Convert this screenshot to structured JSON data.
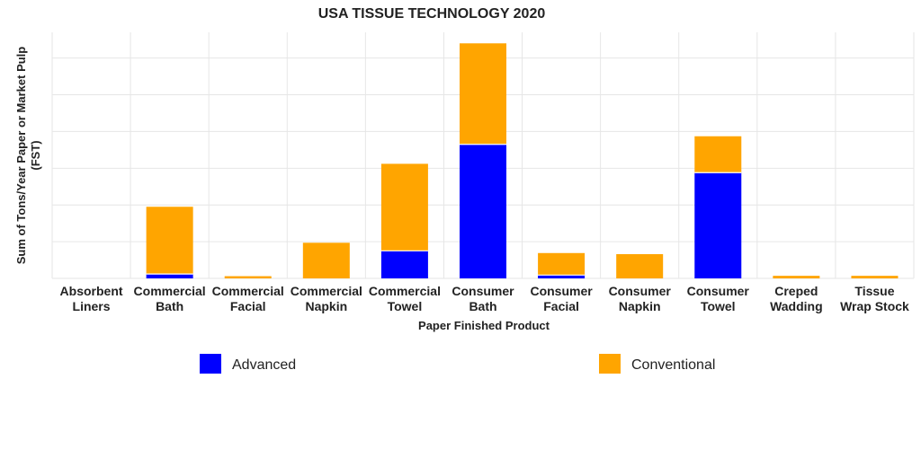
{
  "chart_data": {
    "type": "bar",
    "stacked": true,
    "title": "USA TISSUE TECHNOLOGY 2020",
    "xlabel": "Paper Finished Product",
    "ylabel": "Sum of Tons/Year Paper or Market Pulp (FST)",
    "ylabel_lines": [
      "Sum of Tons/Year Paper or Market Pulp",
      "(FST)"
    ],
    "ylim": [
      0,
      6.7
    ],
    "grid": true,
    "legend_position": "bottom",
    "categories": [
      [
        "Absorbent",
        "Liners"
      ],
      [
        "Commercial",
        "Bath"
      ],
      [
        "Commercial",
        "Facial"
      ],
      [
        "Commercial",
        "Napkin"
      ],
      [
        "Commercial",
        "Towel"
      ],
      [
        "Consumer",
        "Bath"
      ],
      [
        "Consumer",
        "Facial"
      ],
      [
        "Consumer",
        "Napkin"
      ],
      [
        "Consumer",
        "Towel"
      ],
      [
        "Creped",
        "Wadding"
      ],
      [
        "Tissue",
        "Wrap Stock"
      ]
    ],
    "series": [
      {
        "name": "Advanced",
        "color": "#0000ff",
        "values": [
          0,
          0.12,
          0,
          0,
          0.75,
          3.65,
          0.09,
          0,
          2.88,
          0,
          0
        ]
      },
      {
        "name": "Conventional",
        "color": "#ffa500",
        "values": [
          0,
          1.83,
          0.06,
          0.97,
          2.37,
          2.75,
          0.6,
          0.66,
          0.99,
          0.07,
          0.07
        ]
      }
    ]
  }
}
